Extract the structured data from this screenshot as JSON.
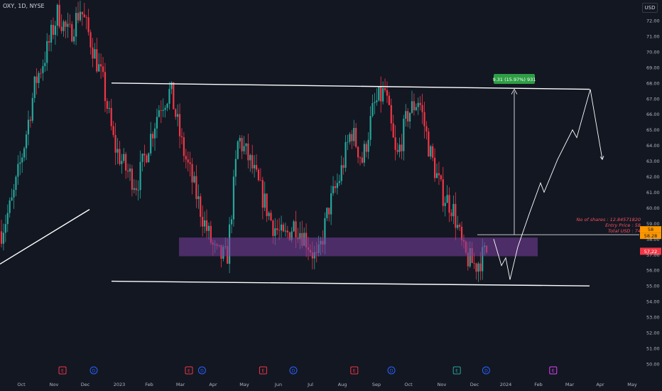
{
  "header": {
    "symbol": "OXY, 1D, NYSE",
    "currency": "USD"
  },
  "colors": {
    "background": "#131722",
    "up": "#26a69a",
    "down": "#f23645",
    "zone": "#7b3fa0",
    "measure": "#2e9e44",
    "current": "#f23645",
    "entry": "#ff9800",
    "grid_text": "#b2b5be",
    "lines": "#ffffff"
  },
  "chart_data": {
    "type": "candlestick",
    "title": "",
    "x_ticks": [
      "Oct",
      "Nov",
      "Dec",
      "2023",
      "Feb",
      "Mar",
      "Apr",
      "May",
      "Jun",
      "Jul",
      "Aug",
      "Sep",
      "Oct",
      "Nov",
      "Dec",
      "2024",
      "Feb",
      "Mar",
      "Apr",
      "May"
    ],
    "y_ticks": [
      50.0,
      51.0,
      52.0,
      53.0,
      54.0,
      55.0,
      56.0,
      57.0,
      58.0,
      59.0,
      60.0,
      61.0,
      62.0,
      63.0,
      64.0,
      65.0,
      66.0,
      67.0,
      68.0,
      69.0,
      70.0,
      71.0,
      72.0
    ],
    "ylim": [
      49.7,
      73.3
    ],
    "price_path": [
      [
        "Oct",
        58.5
      ],
      [
        "Oct",
        60.5
      ],
      [
        "Oct",
        64.0
      ],
      [
        "Oct",
        68.0
      ],
      [
        "Oct",
        70.0
      ],
      [
        "Nov",
        72.5
      ],
      [
        "Nov",
        71.0
      ],
      [
        "Nov",
        72.8
      ],
      [
        "Nov",
        70.5
      ],
      [
        "Dec",
        68.0
      ],
      [
        "Dec",
        64.0
      ],
      [
        "Dec",
        62.5
      ],
      [
        "2023",
        61.5
      ],
      [
        "2023",
        64.0
      ],
      [
        "2023",
        66.5
      ],
      [
        "Feb",
        67.5
      ],
      [
        "Feb",
        64.0
      ],
      [
        "Feb",
        61.5
      ],
      [
        "Mar",
        59.0
      ],
      [
        "Mar",
        57.0
      ],
      [
        "Mar",
        56.8
      ],
      [
        "Apr",
        64.5
      ],
      [
        "Apr",
        63.0
      ],
      [
        "May",
        61.0
      ],
      [
        "May",
        59.0
      ],
      [
        "May",
        58.0
      ],
      [
        "Jun",
        59.0
      ],
      [
        "Jun",
        58.0
      ],
      [
        "Jul",
        56.5
      ],
      [
        "Jul",
        60.0
      ],
      [
        "Jul",
        62.0
      ],
      [
        "Aug",
        65.0
      ],
      [
        "Aug",
        63.0
      ],
      [
        "Sep",
        66.5
      ],
      [
        "Sep",
        67.5
      ],
      [
        "Sep",
        63.0
      ],
      [
        "Oct",
        66.0
      ],
      [
        "Oct",
        67.0
      ],
      [
        "Oct",
        63.5
      ],
      [
        "Nov",
        61.0
      ],
      [
        "Nov",
        60.0
      ],
      [
        "Dec",
        57.0
      ],
      [
        "Dec",
        56.3
      ],
      [
        "Dec",
        57.2
      ]
    ],
    "channel": {
      "upper": [
        [
          "Jan",
          68.0
        ],
        [
          "Apr",
          67.6
        ]
      ],
      "lower": [
        [
          "Jan",
          55.3
        ],
        [
          "Apr",
          55.0
        ]
      ]
    },
    "support_line": [
      [
        0,
        56.4
      ],
      [
        126,
        59.9
      ]
    ],
    "demand_zone": {
      "top": 58.1,
      "bottom": 56.9
    },
    "projection": [
      58.0,
      56.3,
      56.8,
      55.4,
      57.5,
      59.6,
      61.6,
      61.0,
      63.1,
      65.0,
      64.5,
      67.6,
      63.1
    ],
    "price_labels": {
      "current": "57.22",
      "entry": "58.28",
      "entry_top": "58"
    },
    "measure": {
      "label": "9.31 (15.97%) 931",
      "from": 58.28,
      "to": 67.6
    },
    "position_info": [
      "No of shares : 12.84571820",
      "Entry Price  : 58",
      "Total USD    : 74"
    ],
    "events": [
      {
        "type": "E",
        "color": "#f23645",
        "x_index": 1
      },
      {
        "type": "D",
        "color": "#2962ff",
        "x_index": 2
      },
      {
        "type": "E",
        "color": "#f23645",
        "x_index": 5
      },
      {
        "type": "D",
        "color": "#2962ff",
        "x_index": 5.4
      },
      {
        "type": "E",
        "color": "#f23645",
        "x_index": 7.3
      },
      {
        "type": "D",
        "color": "#2962ff",
        "x_index": 8.2
      },
      {
        "type": "E",
        "color": "#f23645",
        "x_index": 10.1
      },
      {
        "type": "D",
        "color": "#2962ff",
        "x_index": 11.2
      },
      {
        "type": "E",
        "color": "#26a69a",
        "x_index": 13.2
      },
      {
        "type": "D",
        "color": "#2962ff",
        "x_index": 14.1
      },
      {
        "type": "E",
        "color": "#e040fb",
        "x_index": 16.2
      }
    ]
  }
}
